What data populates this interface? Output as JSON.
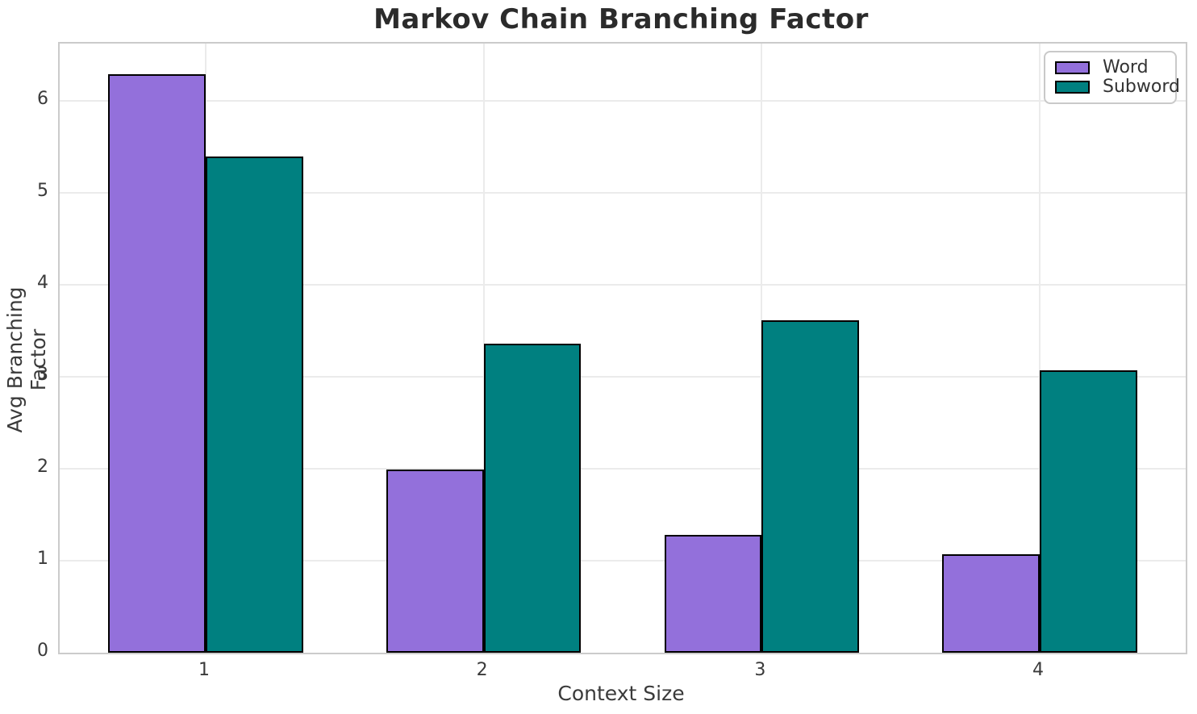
{
  "chart_data": {
    "type": "bar",
    "title": "Markov Chain Branching Factor",
    "xlabel": "Context Size",
    "ylabel": "Avg Branching Factor",
    "categories": [
      "1",
      "2",
      "3",
      "4"
    ],
    "series": [
      {
        "name": "Word",
        "color": "#9370DB",
        "values": [
          6.29,
          1.99,
          1.28,
          1.07
        ]
      },
      {
        "name": "Subword",
        "color": "#008080",
        "values": [
          5.39,
          3.36,
          3.61,
          3.07
        ]
      }
    ],
    "bar_width_units": 0.35,
    "bar_edge_color": "#000000",
    "ylim": [
      0,
      6.62
    ],
    "yticks": [
      0,
      1,
      2,
      3,
      4,
      5,
      6
    ],
    "xlim": [
      0.475,
      4.525
    ],
    "grid": true,
    "legend_position": "upper right",
    "colors": {
      "background": "#ffffff",
      "grid": "#ebebeb",
      "spine": "#cbcbcb",
      "tick_text": "#3a3a3a",
      "title_text": "#2b2b2b"
    }
  }
}
